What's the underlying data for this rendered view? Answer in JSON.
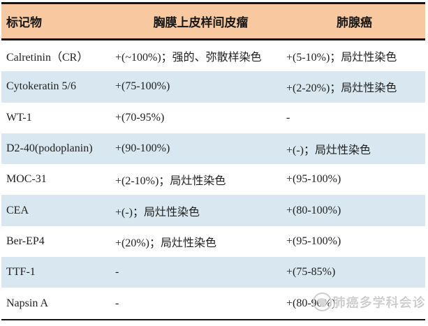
{
  "table": {
    "headers": [
      "标记物",
      "胸膜上皮样间皮瘤",
      "肺腺癌"
    ],
    "rows": [
      {
        "marker": "Calretinin（CR）",
        "mesothelioma": "+(~100%)；强的、弥散样染色",
        "adenocarcinoma": "+(5-10%)；局灶性染色"
      },
      {
        "marker": "Cytokeratin 5/6",
        "mesothelioma": "+(75-100%)",
        "adenocarcinoma": "+(2-20%)；局灶性染色"
      },
      {
        "marker": "WT-1",
        "mesothelioma": "+(70-95%)",
        "adenocarcinoma": "-"
      },
      {
        "marker": "D2-40(podoplanin)",
        "mesothelioma": "+(90-100%)",
        "adenocarcinoma": "+(-)；局灶性染色"
      },
      {
        "marker": "MOC-31",
        "mesothelioma": "+(2-10%)；局灶性染色",
        "adenocarcinoma": "+(95-100%)"
      },
      {
        "marker": "CEA",
        "mesothelioma": "+(-)；局灶性染色",
        "adenocarcinoma": "+(80-100%)"
      },
      {
        "marker": "Ber-EP4",
        "mesothelioma": "+(20%)；局灶性染色",
        "adenocarcinoma": "+(95-100%)"
      },
      {
        "marker": "TTF-1",
        "mesothelioma": "-",
        "adenocarcinoma": "+(75-85%)"
      },
      {
        "marker": "Napsin A",
        "mesothelioma": "-",
        "adenocarcinoma": "+(80-90%)"
      }
    ]
  },
  "watermark": {
    "text": "肺癌多学科会诊",
    "icon": "logo-circle-icon"
  },
  "colors": {
    "header_bg": "#f8c9a1",
    "alt_row_bg": "#d9e8f0",
    "border": "#141414",
    "text": "#1f1f1f",
    "watermark": "#cdcdcd"
  }
}
